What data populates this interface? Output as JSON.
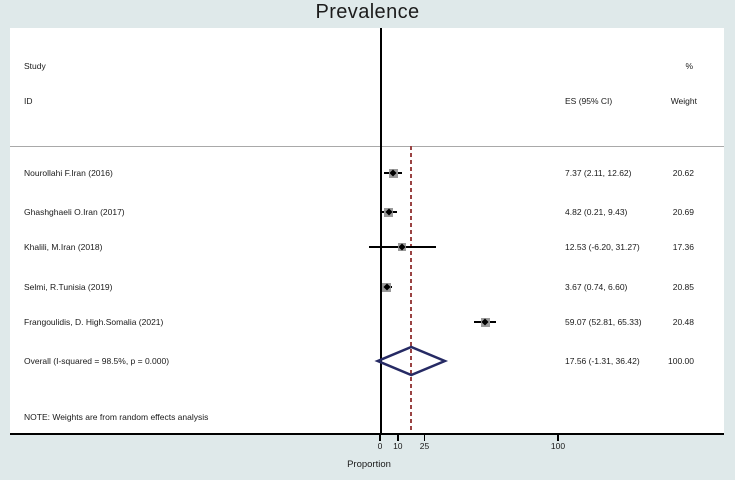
{
  "title": "Prevalence",
  "header": {
    "study": "Study",
    "id": "ID",
    "percent": "%",
    "es_ci": "ES (95% CI)",
    "weight": "Weight"
  },
  "note": "NOTE: Weights are from random effects analysis",
  "x_axis": {
    "label": "Proportion",
    "ticks": [
      "0",
      "10",
      "25",
      "100"
    ]
  },
  "colors": {
    "background": "#dfe9ea",
    "plot_background": "#ffffff",
    "axis": "#000000",
    "diamond_outline": "#262a64",
    "null_line": "#9a4343",
    "marker_square": "#9a9a9a",
    "marker_point": "#000000"
  },
  "chart_data": {
    "type": "forest",
    "title": "Prevalence",
    "xlabel": "Proportion",
    "x_ticks": [
      0,
      10,
      25,
      100
    ],
    "null_line_value": 17.56,
    "studies": [
      {
        "label": "Nourollahi F.Iran (2016)",
        "es": 7.37,
        "ci_low": 2.11,
        "ci_high": 12.62,
        "es_text": "7.37 (2.11, 12.62)",
        "weight": 20.62,
        "weight_text": "20.62"
      },
      {
        "label": "Ghashghaeli O.Iran (2017)",
        "es": 4.82,
        "ci_low": 0.21,
        "ci_high": 9.43,
        "es_text": "4.82 (0.21, 9.43)",
        "weight": 20.69,
        "weight_text": "20.69"
      },
      {
        "label": "Khalili, M.Iran (2018)",
        "es": 12.53,
        "ci_low": -6.2,
        "ci_high": 31.27,
        "es_text": "12.53 (-6.20, 31.27)",
        "weight": 17.36,
        "weight_text": "17.36"
      },
      {
        "label": "Selmi, R.Tunisia (2019)",
        "es": 3.67,
        "ci_low": 0.74,
        "ci_high": 6.6,
        "es_text": "3.67 (0.74, 6.60)",
        "weight": 20.85,
        "weight_text": "20.85"
      },
      {
        "label": "Frangoulidis, D. High.Somalia  (2021)",
        "es": 59.07,
        "ci_low": 52.81,
        "ci_high": 65.33,
        "es_text": "59.07 (52.81, 65.33)",
        "weight": 20.48,
        "weight_text": "20.48"
      }
    ],
    "overall": {
      "label": "Overall  (I-squared = 98.5%, p = 0.000)",
      "es": 17.56,
      "ci_low": -1.31,
      "ci_high": 36.42,
      "es_text": "17.56 (-1.31, 36.42)",
      "weight": 100.0,
      "weight_text": "100.00",
      "i_squared": "98.5%",
      "p_value": "0.000"
    }
  }
}
